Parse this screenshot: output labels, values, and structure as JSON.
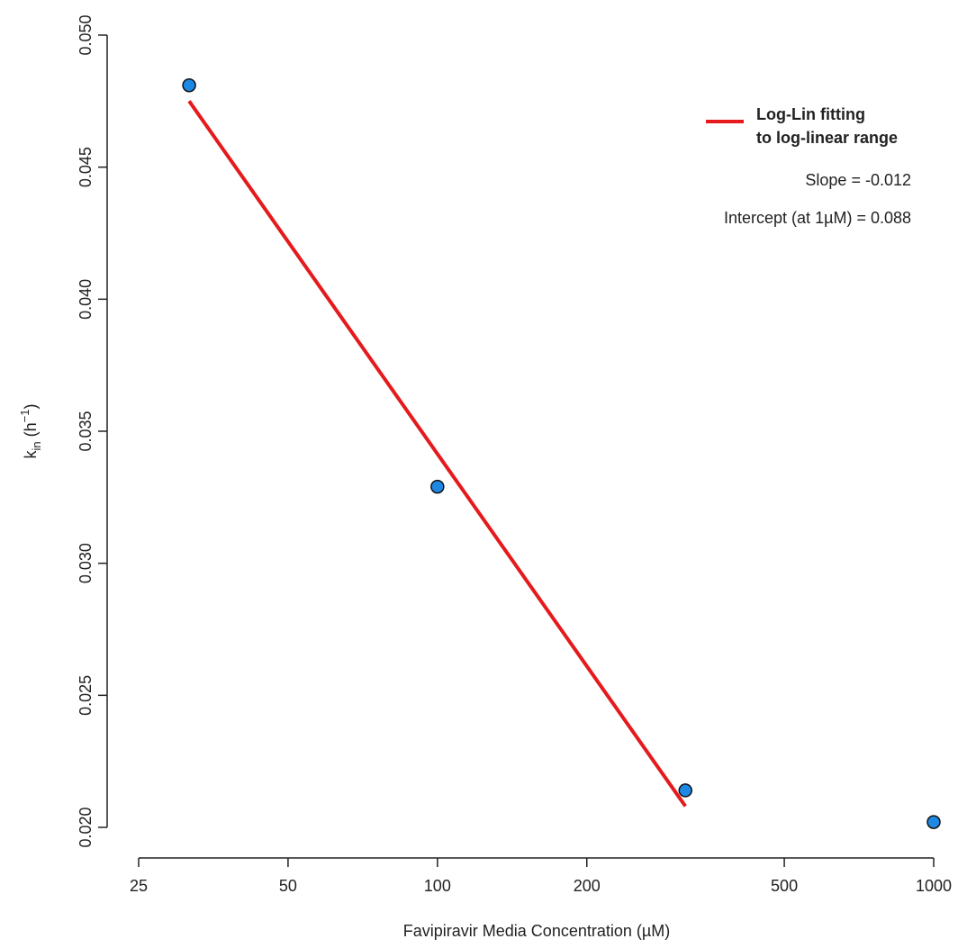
{
  "chart_data": {
    "type": "scatter",
    "xlabel": "Favipiravir Media Concentration (µM)",
    "ylabel_main": "k",
    "ylabel_sub": "in",
    "ylabel_rest": " (h",
    "ylabel_sup": "−1",
    "ylabel_end": ")",
    "x_scale": "log",
    "xlim": [
      25,
      1000
    ],
    "ylim": [
      0.02,
      0.05
    ],
    "x_ticks": [
      25,
      50,
      100,
      200,
      500,
      1000
    ],
    "x_tick_labels": [
      "25",
      "50",
      "100",
      "200",
      "500",
      "1000"
    ],
    "y_ticks": [
      0.02,
      0.025,
      0.03,
      0.035,
      0.04,
      0.045,
      0.05
    ],
    "y_tick_labels": [
      "0.020",
      "0.025",
      "0.030",
      "0.035",
      "0.040",
      "0.045",
      "0.050"
    ],
    "grid": false,
    "points": {
      "x": [
        31.6,
        100,
        316,
        1000
      ],
      "y": [
        0.0481,
        0.0329,
        0.0214,
        0.0202
      ],
      "color": "#1e88e5"
    },
    "fit_line": {
      "color": "#e41a1c",
      "x": [
        31.6,
        316
      ],
      "y": [
        0.0475,
        0.0208
      ]
    },
    "legend": {
      "placement": "top-right",
      "line1": "Log-Lin fitting",
      "line2": "to log-linear range"
    },
    "annotations": {
      "slope": "Slope = -0.012",
      "intercept_prefix": "Intercept (at 1",
      "intercept_mu": "µ",
      "intercept_suffix": "M) = 0.088"
    }
  }
}
